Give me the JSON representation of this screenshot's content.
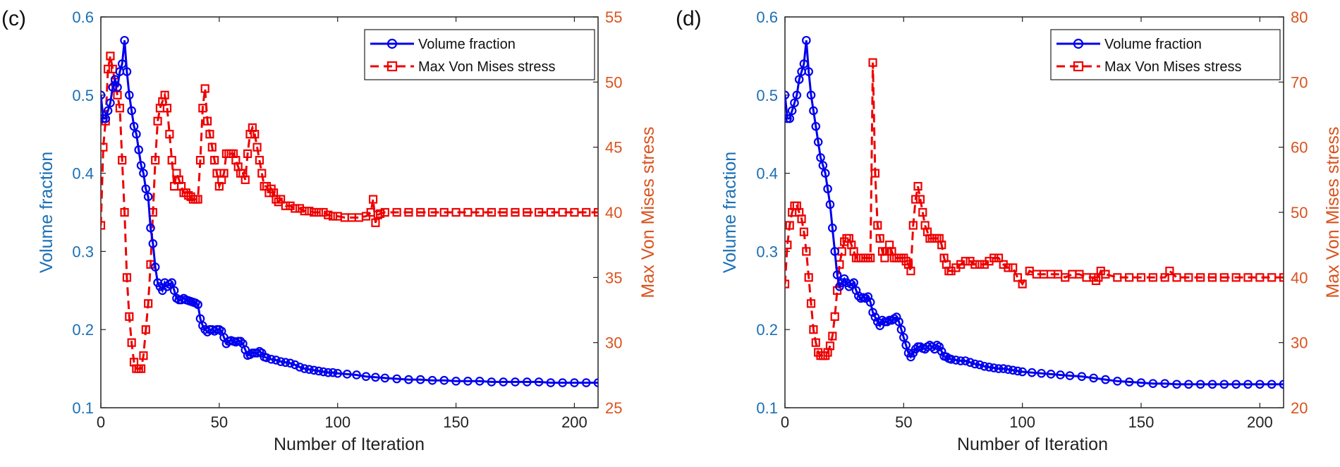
{
  "colors": {
    "volume": "#0000ee",
    "stress": "#ee0000",
    "left_axis": "#1b6fb5",
    "right_axis": "#d9531e",
    "frame": "#222222"
  },
  "chart_data": [
    {
      "panel_label": "(c)",
      "type": "line",
      "xlabel": "Number of Iteration",
      "ylabel_left": "Volume fraction",
      "ylabel_right": "Max Von Mises stress",
      "xlim": [
        0,
        210
      ],
      "ylim_left": [
        0.1,
        0.6
      ],
      "ylim_right": [
        25,
        55
      ],
      "xticks": [
        0,
        50,
        100,
        150,
        200
      ],
      "yticks_left": [
        0.1,
        0.2,
        0.3,
        0.4,
        0.5,
        0.6
      ],
      "yticks_right": [
        25,
        30,
        35,
        40,
        45,
        50,
        55
      ],
      "legend": [
        "Volume fraction",
        "Max Von Mises stress"
      ],
      "legend_position": "top-right",
      "series": [
        {
          "name": "Volume fraction",
          "axis": "left",
          "style": "solid-circle",
          "x": [
            0,
            1,
            2,
            3,
            4,
            5,
            6,
            7,
            8,
            9,
            10,
            11,
            12,
            13,
            14,
            15,
            16,
            17,
            18,
            19,
            20,
            21,
            22,
            23,
            24,
            25,
            26,
            27,
            28,
            29,
            30,
            31,
            32,
            33,
            34,
            35,
            36,
            37,
            38,
            39,
            40,
            41,
            42,
            43,
            44,
            45,
            46,
            47,
            48,
            49,
            50,
            51,
            52,
            53,
            54,
            55,
            56,
            57,
            58,
            59,
            60,
            61,
            62,
            63,
            64,
            65,
            66,
            67,
            68,
            69,
            70,
            72,
            74,
            76,
            78,
            80,
            82,
            84,
            86,
            88,
            90,
            92,
            94,
            96,
            98,
            100,
            104,
            108,
            112,
            116,
            120,
            125,
            130,
            135,
            140,
            145,
            150,
            155,
            160,
            165,
            170,
            175,
            180,
            185,
            190,
            195,
            200,
            205,
            210
          ],
          "values": [
            0.5,
            0.47,
            0.47,
            0.48,
            0.49,
            0.51,
            0.52,
            0.51,
            0.53,
            0.54,
            0.57,
            0.53,
            0.5,
            0.48,
            0.46,
            0.45,
            0.43,
            0.41,
            0.4,
            0.38,
            0.37,
            0.33,
            0.31,
            0.28,
            0.26,
            0.255,
            0.25,
            0.26,
            0.255,
            0.258,
            0.26,
            0.25,
            0.24,
            0.238,
            0.238,
            0.24,
            0.238,
            0.237,
            0.236,
            0.235,
            0.234,
            0.232,
            0.214,
            0.205,
            0.2,
            0.197,
            0.2,
            0.2,
            0.198,
            0.2,
            0.2,
            0.198,
            0.19,
            0.182,
            0.185,
            0.186,
            0.185,
            0.184,
            0.185,
            0.185,
            0.182,
            0.174,
            0.167,
            0.168,
            0.17,
            0.17,
            0.17,
            0.172,
            0.17,
            0.165,
            0.164,
            0.162,
            0.161,
            0.159,
            0.158,
            0.157,
            0.155,
            0.152,
            0.15,
            0.149,
            0.148,
            0.147,
            0.146,
            0.145,
            0.145,
            0.144,
            0.143,
            0.142,
            0.14,
            0.139,
            0.138,
            0.137,
            0.136,
            0.136,
            0.135,
            0.135,
            0.134,
            0.134,
            0.134,
            0.133,
            0.133,
            0.133,
            0.133,
            0.133,
            0.132,
            0.132,
            0.132,
            0.132,
            0.132
          ]
        },
        {
          "name": "Max Von Mises stress",
          "axis": "right",
          "style": "dashed-square",
          "x": [
            0,
            1,
            2,
            3,
            4,
            5,
            6,
            7,
            8,
            9,
            10,
            11,
            12,
            13,
            14,
            15,
            16,
            17,
            18,
            19,
            20,
            21,
            22,
            23,
            24,
            25,
            26,
            27,
            28,
            29,
            30,
            31,
            32,
            33,
            34,
            35,
            36,
            37,
            38,
            39,
            40,
            41,
            42,
            43,
            44,
            45,
            46,
            47,
            48,
            49,
            50,
            51,
            52,
            53,
            54,
            55,
            56,
            57,
            58,
            59,
            60,
            61,
            62,
            63,
            64,
            65,
            66,
            67,
            68,
            69,
            70,
            71,
            72,
            73,
            74,
            75,
            76,
            78,
            80,
            82,
            84,
            86,
            88,
            90,
            92,
            94,
            96,
            98,
            100,
            103,
            106,
            109,
            112,
            114,
            115,
            116,
            117,
            118,
            120,
            125,
            130,
            135,
            140,
            145,
            150,
            155,
            160,
            165,
            170,
            175,
            180,
            185,
            190,
            195,
            200,
            205,
            210
          ],
          "values": [
            39,
            45,
            47,
            51,
            52,
            51,
            50,
            49,
            48,
            44,
            40,
            35,
            32,
            30,
            28.5,
            28,
            28,
            28,
            29,
            31,
            33,
            36,
            40,
            44,
            47,
            48,
            48.5,
            49,
            48,
            46,
            44,
            42,
            43,
            42.5,
            42,
            41.5,
            41.5,
            41.3,
            41.2,
            41,
            41,
            41,
            44,
            48,
            49.5,
            47,
            46,
            45,
            44,
            43,
            42,
            42.5,
            43,
            44.5,
            44.5,
            44.5,
            44.5,
            44,
            43.5,
            43,
            43,
            42.5,
            44.5,
            46,
            46.5,
            46,
            45,
            44,
            43,
            42,
            42,
            41.5,
            41.8,
            41.5,
            41,
            40.8,
            41,
            40.5,
            40.5,
            40.3,
            40.3,
            40.1,
            40.1,
            40,
            40,
            40,
            39.8,
            39.7,
            39.7,
            39.6,
            39.6,
            39.6,
            39.7,
            40,
            41,
            39.2,
            39.8,
            39.9,
            40,
            40,
            40,
            40,
            40,
            40,
            40,
            40,
            40,
            40,
            40,
            40,
            40,
            40,
            40,
            40,
            40,
            40,
            40
          ]
        }
      ]
    },
    {
      "panel_label": "(d)",
      "type": "line",
      "xlabel": "Number of Iteration",
      "ylabel_left": "Volume fraction",
      "ylabel_right": "Max Von Mises stress",
      "xlim": [
        0,
        210
      ],
      "ylim_left": [
        0.1,
        0.6
      ],
      "ylim_right": [
        20,
        80
      ],
      "xticks": [
        0,
        50,
        100,
        150,
        200
      ],
      "yticks_left": [
        0.1,
        0.2,
        0.3,
        0.4,
        0.5,
        0.6
      ],
      "yticks_right": [
        20,
        30,
        40,
        50,
        60,
        70,
        80
      ],
      "legend": [
        "Volume fraction",
        "Max Von Mises stress"
      ],
      "legend_position": "top-right",
      "series": [
        {
          "name": "Volume fraction",
          "axis": "left",
          "style": "solid-circle",
          "x": [
            0,
            1,
            2,
            3,
            4,
            5,
            6,
            7,
            8,
            9,
            10,
            11,
            12,
            13,
            14,
            15,
            16,
            17,
            18,
            19,
            20,
            21,
            22,
            23,
            24,
            25,
            26,
            27,
            28,
            29,
            30,
            31,
            32,
            33,
            34,
            35,
            36,
            37,
            38,
            39,
            40,
            41,
            42,
            43,
            44,
            45,
            46,
            47,
            48,
            49,
            50,
            51,
            52,
            53,
            54,
            55,
            56,
            57,
            58,
            59,
            60,
            61,
            62,
            63,
            64,
            65,
            66,
            67,
            68,
            69,
            70,
            72,
            74,
            76,
            78,
            80,
            82,
            84,
            86,
            88,
            90,
            92,
            94,
            96,
            98,
            100,
            104,
            108,
            112,
            116,
            120,
            125,
            130,
            135,
            140,
            145,
            150,
            155,
            160,
            165,
            170,
            175,
            180,
            185,
            190,
            195,
            200,
            205,
            210
          ],
          "values": [
            0.5,
            0.47,
            0.47,
            0.48,
            0.49,
            0.5,
            0.52,
            0.53,
            0.54,
            0.57,
            0.53,
            0.5,
            0.48,
            0.46,
            0.44,
            0.42,
            0.41,
            0.4,
            0.38,
            0.36,
            0.33,
            0.3,
            0.27,
            0.255,
            0.26,
            0.265,
            0.26,
            0.255,
            0.258,
            0.26,
            0.25,
            0.243,
            0.24,
            0.241,
            0.24,
            0.242,
            0.235,
            0.222,
            0.216,
            0.21,
            0.205,
            0.212,
            0.21,
            0.21,
            0.212,
            0.212,
            0.214,
            0.216,
            0.21,
            0.2,
            0.19,
            0.18,
            0.17,
            0.165,
            0.17,
            0.175,
            0.178,
            0.178,
            0.176,
            0.175,
            0.178,
            0.18,
            0.178,
            0.175,
            0.18,
            0.178,
            0.172,
            0.166,
            0.165,
            0.163,
            0.162,
            0.161,
            0.16,
            0.16,
            0.158,
            0.156,
            0.155,
            0.153,
            0.152,
            0.151,
            0.15,
            0.15,
            0.149,
            0.148,
            0.147,
            0.146,
            0.145,
            0.144,
            0.143,
            0.142,
            0.141,
            0.14,
            0.138,
            0.136,
            0.134,
            0.133,
            0.132,
            0.131,
            0.131,
            0.13,
            0.13,
            0.13,
            0.13,
            0.13,
            0.13,
            0.13,
            0.13,
            0.13,
            0.13
          ]
        },
        {
          "name": "Max Von Mises stress",
          "axis": "right",
          "style": "dashed-square",
          "x": [
            0,
            1,
            2,
            3,
            4,
            5,
            6,
            7,
            8,
            9,
            10,
            11,
            12,
            13,
            14,
            15,
            16,
            17,
            18,
            19,
            20,
            21,
            22,
            23,
            24,
            25,
            26,
            27,
            28,
            29,
            30,
            31,
            32,
            33,
            34,
            35,
            36,
            37,
            38,
            39,
            40,
            41,
            42,
            43,
            44,
            45,
            46,
            47,
            48,
            49,
            50,
            51,
            52,
            53,
            54,
            55,
            56,
            57,
            58,
            59,
            60,
            61,
            62,
            63,
            64,
            65,
            66,
            67,
            68,
            69,
            70,
            72,
            74,
            76,
            78,
            80,
            82,
            84,
            86,
            88,
            90,
            92,
            94,
            96,
            98,
            100,
            103,
            106,
            109,
            112,
            115,
            118,
            121,
            124,
            127,
            130,
            131,
            132,
            133,
            135,
            140,
            145,
            150,
            155,
            160,
            162,
            165,
            170,
            175,
            180,
            185,
            190,
            195,
            200,
            205,
            210
          ],
          "values": [
            39,
            45,
            48,
            50,
            51,
            51,
            50,
            49,
            47,
            44,
            40,
            36,
            32,
            30,
            28.5,
            28,
            28,
            28,
            28.5,
            29.5,
            31,
            34,
            38,
            42,
            44,
            45.5,
            46,
            46,
            45,
            44,
            43,
            43,
            43,
            43,
            43,
            43,
            43,
            73,
            56,
            48,
            46,
            44,
            43,
            44,
            45,
            44,
            43,
            43,
            43,
            43,
            43,
            42.5,
            42,
            41,
            48,
            52,
            54,
            52,
            50,
            48,
            47,
            46,
            46,
            46,
            46,
            46,
            45,
            43,
            42,
            41,
            41,
            41.5,
            42,
            42.5,
            42.5,
            42,
            42,
            42,
            42.5,
            43,
            43,
            42,
            41.5,
            41.5,
            40,
            39,
            41,
            40.5,
            40.5,
            40.5,
            40.5,
            40,
            40.5,
            40.5,
            40,
            40,
            39.5,
            40,
            41,
            40.5,
            40,
            40,
            40,
            40,
            40,
            41,
            40,
            40,
            40,
            40,
            40,
            40,
            40,
            40,
            40,
            40
          ]
        }
      ]
    }
  ]
}
